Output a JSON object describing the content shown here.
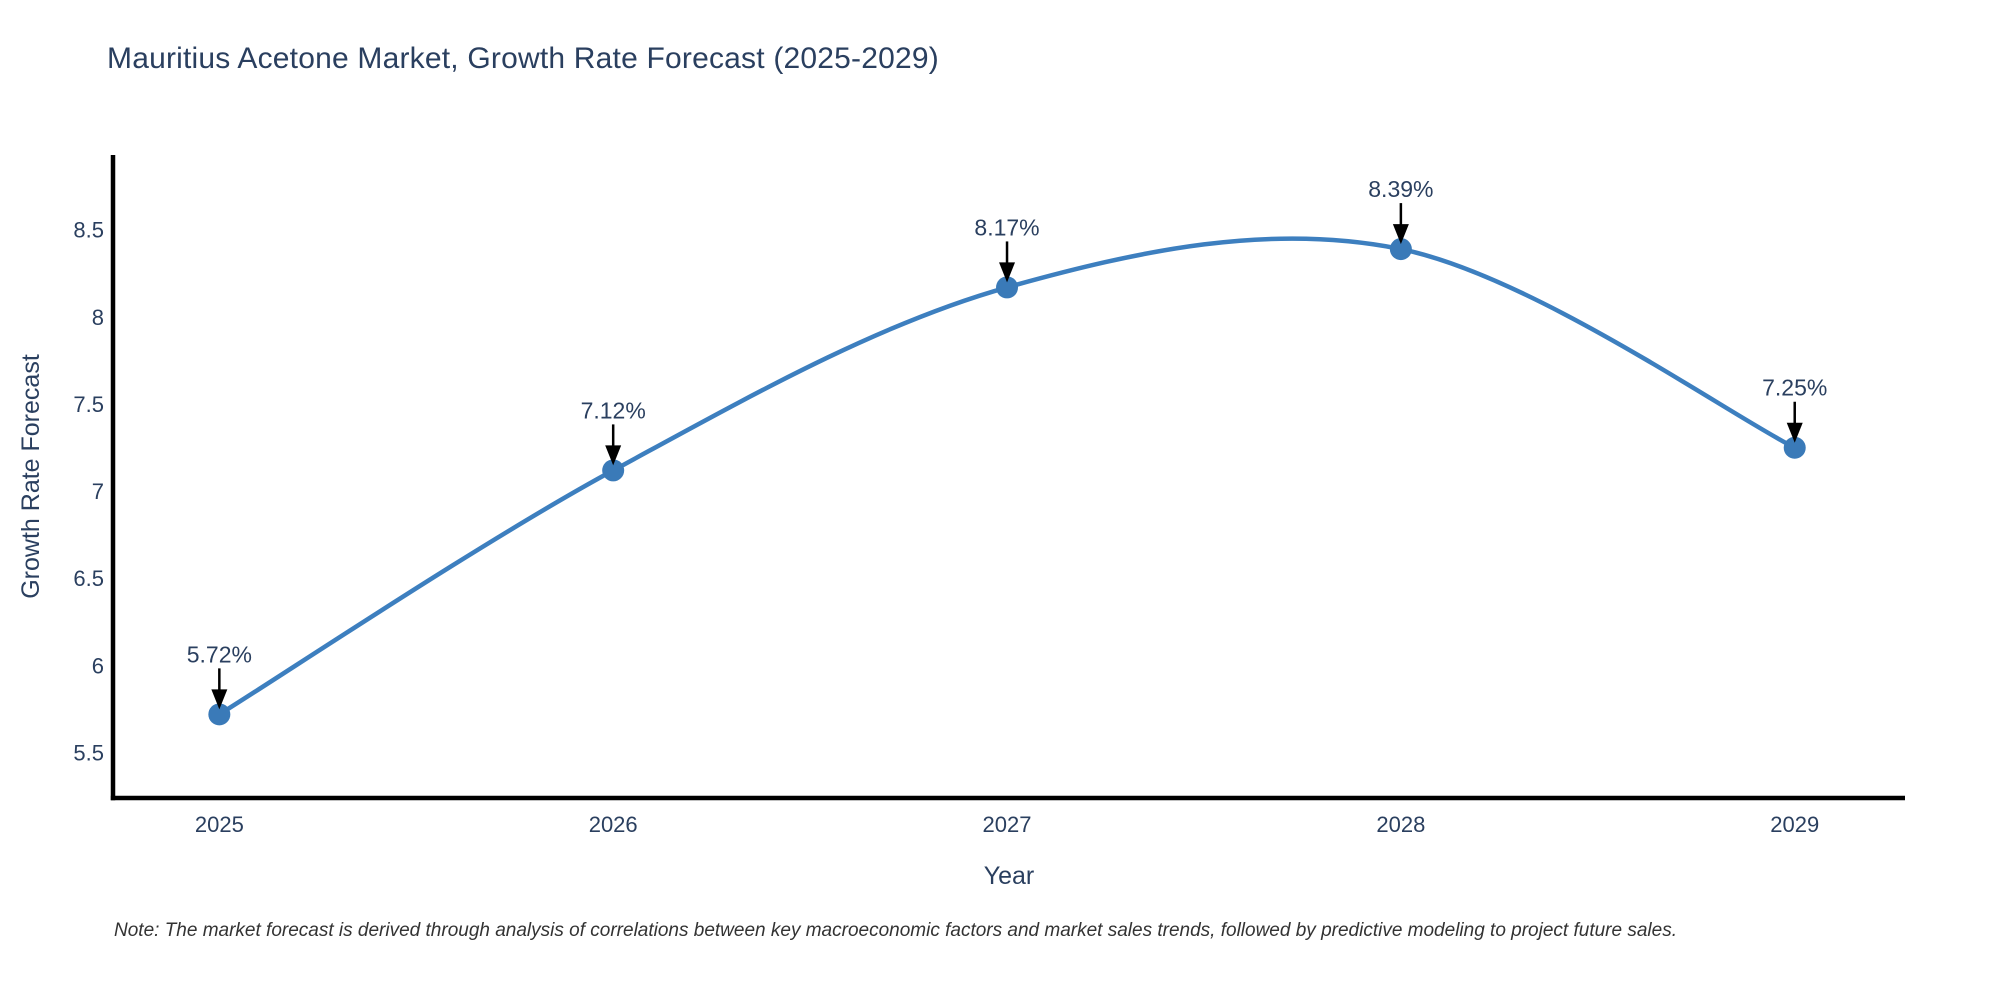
{
  "title": "Mauritius Acetone Market, Growth Rate Forecast (2025-2029)",
  "note": "Note: The market forecast is derived through analysis of correlations between key macroeconomic factors and market sales trends, followed by predictive modeling to project future sales.",
  "chart_data": {
    "type": "line",
    "title": "Mauritius Acetone Market, Growth Rate Forecast (2025-2029)",
    "xlabel": "Year",
    "ylabel": "Growth Rate Forecast",
    "x": [
      2025,
      2026,
      2027,
      2028,
      2029
    ],
    "xtick_labels": [
      "2025",
      "2026",
      "2027",
      "2028",
      "2029"
    ],
    "series": [
      {
        "name": "Growth Rate Forecast",
        "values": [
          5.72,
          7.12,
          8.17,
          8.39,
          7.25
        ]
      }
    ],
    "point_labels": [
      "5.72%",
      "7.12%",
      "8.17%",
      "8.39%",
      "7.25%"
    ],
    "yticks": [
      5.5,
      6,
      6.5,
      7,
      7.5,
      8,
      8.5
    ],
    "ytick_labels": [
      "5.5",
      "6",
      "6.5",
      "7",
      "7.5",
      "8",
      "8.5"
    ],
    "xlim": [
      2024.73,
      2029.28
    ],
    "ylim": [
      5.24,
      8.93
    ],
    "grid": false,
    "legend": "none",
    "line_shape": "spline",
    "colors": {
      "line": "#3d7fbf",
      "marker": "#3a7ab8",
      "arrow": "#000000",
      "axis": "#000000",
      "text": "#2a3f5f",
      "note_text": "#333333",
      "background": "#ffffff"
    }
  }
}
